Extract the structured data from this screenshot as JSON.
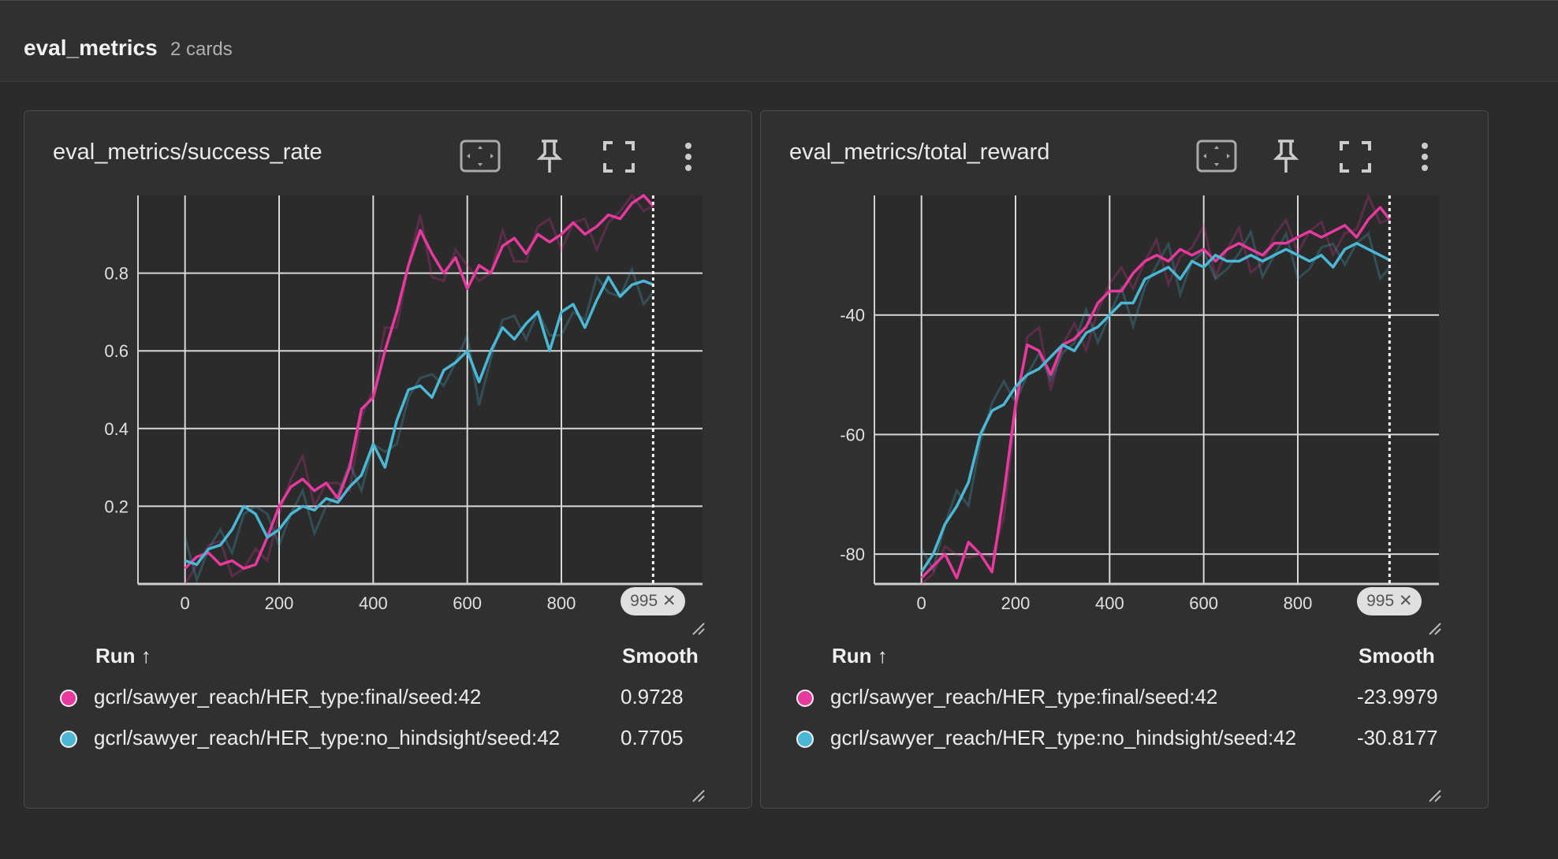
{
  "header": {
    "title": "eval_metrics",
    "count": "2 cards"
  },
  "colors": {
    "final": "#e8399e",
    "no_hindsight": "#4ab8d4",
    "grid": "#d8d8d8",
    "bg": "#2b2b2b"
  },
  "icons": [
    "fit-domain-icon",
    "pin-icon",
    "fullscreen-icon",
    "more-vert-icon"
  ],
  "table_headers": {
    "run": "Run ↑",
    "smooth": "Smooth"
  },
  "cards": [
    {
      "title": "eval_metrics/success_rate",
      "step_badge": "995",
      "runs": [
        {
          "name": "gcrl/sawyer_reach/HER_type:final/seed:42",
          "value": "0.9728"
        },
        {
          "name": "gcrl/sawyer_reach/HER_type:no_hindsight/seed:42",
          "value": "0.7705"
        }
      ]
    },
    {
      "title": "eval_metrics/total_reward",
      "step_badge": "995",
      "runs": [
        {
          "name": "gcrl/sawyer_reach/HER_type:final/seed:42",
          "value": "-23.9979"
        },
        {
          "name": "gcrl/sawyer_reach/HER_type:no_hindsight/seed:42",
          "value": "-30.8177"
        }
      ]
    }
  ],
  "chart_data": [
    {
      "type": "line",
      "xlim": [
        -100,
        1100
      ],
      "ylim": [
        0,
        1
      ],
      "x_ticks": [
        0,
        200,
        400,
        600,
        800
      ],
      "y_ticks": [
        0.2,
        0.4,
        0.6,
        0.8
      ],
      "y_tick_labels": [
        "0.2",
        "0.4",
        "0.6",
        "0.8"
      ],
      "x_tick_labels": [
        "0",
        "200",
        "400",
        "600",
        "800"
      ],
      "cursor_step": 995,
      "series": [
        {
          "name": "gcrl/sawyer_reach/HER_type:final/seed:42",
          "x": [
            0,
            25,
            50,
            75,
            100,
            125,
            150,
            175,
            200,
            225,
            250,
            275,
            300,
            325,
            350,
            375,
            400,
            425,
            450,
            475,
            500,
            525,
            550,
            575,
            600,
            625,
            650,
            675,
            700,
            725,
            750,
            775,
            800,
            825,
            850,
            875,
            900,
            925,
            950,
            975,
            995
          ],
          "y": [
            0.04,
            0.07,
            0.08,
            0.05,
            0.06,
            0.04,
            0.05,
            0.12,
            0.2,
            0.25,
            0.27,
            0.24,
            0.26,
            0.22,
            0.3,
            0.45,
            0.48,
            0.6,
            0.7,
            0.82,
            0.91,
            0.85,
            0.8,
            0.84,
            0.76,
            0.82,
            0.8,
            0.87,
            0.89,
            0.85,
            0.9,
            0.88,
            0.9,
            0.93,
            0.9,
            0.92,
            0.95,
            0.94,
            0.98,
            1.0,
            0.9728
          ]
        },
        {
          "name": "gcrl/sawyer_reach/HER_type:no_hindsight/seed:42",
          "x": [
            0,
            25,
            50,
            75,
            100,
            125,
            150,
            175,
            200,
            225,
            250,
            275,
            300,
            325,
            350,
            375,
            400,
            425,
            450,
            475,
            500,
            525,
            550,
            575,
            600,
            625,
            650,
            675,
            700,
            725,
            750,
            775,
            800,
            825,
            850,
            875,
            900,
            925,
            950,
            975,
            995
          ],
          "y": [
            0.06,
            0.05,
            0.09,
            0.1,
            0.14,
            0.2,
            0.18,
            0.12,
            0.14,
            0.18,
            0.2,
            0.19,
            0.22,
            0.21,
            0.25,
            0.28,
            0.36,
            0.3,
            0.42,
            0.5,
            0.51,
            0.48,
            0.55,
            0.57,
            0.6,
            0.52,
            0.6,
            0.66,
            0.63,
            0.67,
            0.7,
            0.6,
            0.7,
            0.72,
            0.66,
            0.73,
            0.79,
            0.74,
            0.77,
            0.78,
            0.7705
          ]
        }
      ]
    },
    {
      "type": "line",
      "xlim": [
        -100,
        1100
      ],
      "ylim": [
        -85,
        -20
      ],
      "x_ticks": [
        0,
        200,
        400,
        600,
        800
      ],
      "y_ticks": [
        -80,
        -60,
        -40
      ],
      "y_tick_labels": [
        "-80",
        "-60",
        "-40"
      ],
      "x_tick_labels": [
        "0",
        "200",
        "400",
        "600",
        "800"
      ],
      "cursor_step": 995,
      "series": [
        {
          "name": "gcrl/sawyer_reach/HER_type:final/seed:42",
          "x": [
            0,
            25,
            50,
            75,
            100,
            125,
            150,
            175,
            200,
            225,
            250,
            275,
            300,
            325,
            350,
            375,
            400,
            425,
            450,
            475,
            500,
            525,
            550,
            575,
            600,
            625,
            650,
            675,
            700,
            725,
            750,
            775,
            800,
            825,
            850,
            875,
            900,
            925,
            950,
            975,
            995
          ],
          "y": [
            -84,
            -82,
            -80,
            -84,
            -78,
            -80,
            -83,
            -70,
            -55,
            -45,
            -46,
            -50,
            -45,
            -44,
            -42,
            -38,
            -36,
            -36,
            -33,
            -31,
            -30,
            -31,
            -29,
            -30,
            -29,
            -31,
            -29,
            -28,
            -29,
            -30,
            -28,
            -28,
            -27,
            -26,
            -27,
            -26,
            -25,
            -27,
            -24,
            -22,
            -23.9979
          ]
        },
        {
          "name": "gcrl/sawyer_reach/HER_type:no_hindsight/seed:42",
          "x": [
            0,
            25,
            50,
            75,
            100,
            125,
            150,
            175,
            200,
            225,
            250,
            275,
            300,
            325,
            350,
            375,
            400,
            425,
            450,
            475,
            500,
            525,
            550,
            575,
            600,
            625,
            650,
            675,
            700,
            725,
            750,
            775,
            800,
            825,
            850,
            875,
            900,
            925,
            950,
            975,
            995
          ],
          "y": [
            -83,
            -80,
            -75,
            -72,
            -68,
            -60,
            -56,
            -55,
            -52,
            -50,
            -49,
            -47,
            -45,
            -46,
            -43,
            -42,
            -40,
            -38,
            -38,
            -34,
            -33,
            -32,
            -34,
            -31,
            -32,
            -30,
            -31,
            -31,
            -30,
            -31,
            -30,
            -29,
            -30,
            -31,
            -30,
            -32,
            -29,
            -28,
            -29,
            -30,
            -30.8177
          ]
        }
      ]
    }
  ]
}
